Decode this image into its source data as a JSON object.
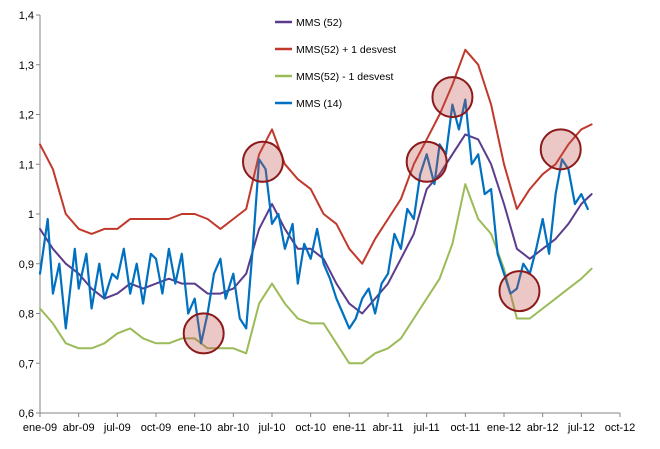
{
  "chart_data": {
    "type": "line",
    "title": "",
    "xlabel": "",
    "ylabel": "",
    "ylim": [
      0.6,
      1.4
    ],
    "xlim": [
      0,
      45
    ],
    "grid": false,
    "legend_position": "top-right",
    "yticks": [
      {
        "v": 0.6,
        "label": "0,6"
      },
      {
        "v": 0.7,
        "label": "0,7"
      },
      {
        "v": 0.8,
        "label": "0,8"
      },
      {
        "v": 0.9,
        "label": "0,9"
      },
      {
        "v": 1.0,
        "label": "1"
      },
      {
        "v": 1.1,
        "label": "1,1"
      },
      {
        "v": 1.2,
        "label": "1,2"
      },
      {
        "v": 1.3,
        "label": "1,3"
      },
      {
        "v": 1.4,
        "label": "1,4"
      }
    ],
    "xticks": [
      {
        "v": 0,
        "label": "ene-09"
      },
      {
        "v": 3,
        "label": "abr-09"
      },
      {
        "v": 6,
        "label": "jul-09"
      },
      {
        "v": 9,
        "label": "oct-09"
      },
      {
        "v": 12,
        "label": "ene-10"
      },
      {
        "v": 15,
        "label": "abr-10"
      },
      {
        "v": 18,
        "label": "jul-10"
      },
      {
        "v": 21,
        "label": "oct-10"
      },
      {
        "v": 24,
        "label": "ene-11"
      },
      {
        "v": 27,
        "label": "abr-11"
      },
      {
        "v": 30,
        "label": "jul-11"
      },
      {
        "v": 33,
        "label": "oct-11"
      },
      {
        "v": 36,
        "label": "ene-12"
      },
      {
        "v": 39,
        "label": "abr-12"
      },
      {
        "v": 42,
        "label": "jul-12"
      },
      {
        "v": 45,
        "label": "oct-12"
      }
    ],
    "series": [
      {
        "name": "MMS (52)",
        "color": "#5b3c8c",
        "points": [
          [
            0,
            0.97
          ],
          [
            1,
            0.93
          ],
          [
            2,
            0.9
          ],
          [
            3,
            0.88
          ],
          [
            4,
            0.85
          ],
          [
            5,
            0.83
          ],
          [
            6,
            0.84
          ],
          [
            7,
            0.86
          ],
          [
            8,
            0.85
          ],
          [
            9,
            0.86
          ],
          [
            10,
            0.87
          ],
          [
            11,
            0.86
          ],
          [
            12,
            0.86
          ],
          [
            13,
            0.84
          ],
          [
            14,
            0.84
          ],
          [
            15,
            0.85
          ],
          [
            16,
            0.88
          ],
          [
            17,
            0.97
          ],
          [
            18,
            1.02
          ],
          [
            19,
            0.97
          ],
          [
            20,
            0.93
          ],
          [
            21,
            0.93
          ],
          [
            22,
            0.91
          ],
          [
            23,
            0.86
          ],
          [
            24,
            0.82
          ],
          [
            25,
            0.8
          ],
          [
            26,
            0.83
          ],
          [
            27,
            0.86
          ],
          [
            28,
            0.91
          ],
          [
            29,
            0.96
          ],
          [
            30,
            1.05
          ],
          [
            31,
            1.08
          ],
          [
            32,
            1.12
          ],
          [
            33,
            1.16
          ],
          [
            34,
            1.15
          ],
          [
            35,
            1.1
          ],
          [
            36,
            1.02
          ],
          [
            37,
            0.93
          ],
          [
            38,
            0.91
          ],
          [
            39,
            0.93
          ],
          [
            40,
            0.95
          ],
          [
            41,
            0.98
          ],
          [
            42,
            1.02
          ],
          [
            42.8,
            1.04
          ]
        ]
      },
      {
        "name": "MMS(52) + 1 desvest",
        "color": "#c0392b",
        "points": [
          [
            0,
            1.14
          ],
          [
            1,
            1.09
          ],
          [
            2,
            1.0
          ],
          [
            3,
            0.97
          ],
          [
            4,
            0.96
          ],
          [
            5,
            0.97
          ],
          [
            6,
            0.97
          ],
          [
            7,
            0.99
          ],
          [
            8,
            0.99
          ],
          [
            9,
            0.99
          ],
          [
            10,
            0.99
          ],
          [
            11,
            1.0
          ],
          [
            12,
            1.0
          ],
          [
            13,
            0.99
          ],
          [
            14,
            0.97
          ],
          [
            15,
            0.99
          ],
          [
            16,
            1.01
          ],
          [
            17,
            1.12
          ],
          [
            18,
            1.17
          ],
          [
            19,
            1.1
          ],
          [
            20,
            1.07
          ],
          [
            21,
            1.05
          ],
          [
            22,
            1.0
          ],
          [
            23,
            0.98
          ],
          [
            24,
            0.93
          ],
          [
            25,
            0.9
          ],
          [
            26,
            0.95
          ],
          [
            27,
            0.99
          ],
          [
            28,
            1.03
          ],
          [
            29,
            1.1
          ],
          [
            30,
            1.15
          ],
          [
            31,
            1.2
          ],
          [
            32,
            1.26
          ],
          [
            33,
            1.33
          ],
          [
            34,
            1.3
          ],
          [
            35,
            1.22
          ],
          [
            36,
            1.1
          ],
          [
            37,
            1.01
          ],
          [
            38,
            1.05
          ],
          [
            39,
            1.08
          ],
          [
            40,
            1.1
          ],
          [
            41,
            1.14
          ],
          [
            42,
            1.17
          ],
          [
            42.8,
            1.18
          ]
        ]
      },
      {
        "name": "MMS(52) - 1 desvest",
        "color": "#9bbb59",
        "points": [
          [
            0,
            0.81
          ],
          [
            1,
            0.78
          ],
          [
            2,
            0.74
          ],
          [
            3,
            0.73
          ],
          [
            4,
            0.73
          ],
          [
            5,
            0.74
          ],
          [
            6,
            0.76
          ],
          [
            7,
            0.77
          ],
          [
            8,
            0.75
          ],
          [
            9,
            0.74
          ],
          [
            10,
            0.74
          ],
          [
            11,
            0.75
          ],
          [
            12,
            0.75
          ],
          [
            13,
            0.73
          ],
          [
            14,
            0.73
          ],
          [
            15,
            0.73
          ],
          [
            16,
            0.72
          ],
          [
            17,
            0.82
          ],
          [
            18,
            0.86
          ],
          [
            19,
            0.82
          ],
          [
            20,
            0.79
          ],
          [
            21,
            0.78
          ],
          [
            22,
            0.78
          ],
          [
            23,
            0.74
          ],
          [
            24,
            0.7
          ],
          [
            25,
            0.7
          ],
          [
            26,
            0.72
          ],
          [
            27,
            0.73
          ],
          [
            28,
            0.75
          ],
          [
            29,
            0.79
          ],
          [
            30,
            0.83
          ],
          [
            31,
            0.87
          ],
          [
            32,
            0.94
          ],
          [
            33,
            1.06
          ],
          [
            34,
            0.99
          ],
          [
            35,
            0.96
          ],
          [
            36,
            0.89
          ],
          [
            37,
            0.79
          ],
          [
            38,
            0.79
          ],
          [
            39,
            0.81
          ],
          [
            40,
            0.83
          ],
          [
            41,
            0.85
          ],
          [
            42,
            0.87
          ],
          [
            42.8,
            0.89
          ]
        ]
      },
      {
        "name": "MMS (14)",
        "color": "#0070c0",
        "points": [
          [
            0,
            0.88
          ],
          [
            0.6,
            0.99
          ],
          [
            1,
            0.84
          ],
          [
            1.5,
            0.9
          ],
          [
            2,
            0.77
          ],
          [
            2.7,
            0.93
          ],
          [
            3,
            0.85
          ],
          [
            3.6,
            0.92
          ],
          [
            4,
            0.81
          ],
          [
            4.6,
            0.9
          ],
          [
            5,
            0.83
          ],
          [
            5.6,
            0.88
          ],
          [
            6,
            0.87
          ],
          [
            6.5,
            0.93
          ],
          [
            7,
            0.84
          ],
          [
            7.5,
            0.9
          ],
          [
            8,
            0.82
          ],
          [
            8.6,
            0.92
          ],
          [
            9,
            0.91
          ],
          [
            9.5,
            0.84
          ],
          [
            10,
            0.93
          ],
          [
            10.5,
            0.86
          ],
          [
            11,
            0.92
          ],
          [
            11.5,
            0.8
          ],
          [
            12,
            0.83
          ],
          [
            12.5,
            0.74
          ],
          [
            13,
            0.8
          ],
          [
            13.5,
            0.88
          ],
          [
            14,
            0.91
          ],
          [
            14.4,
            0.83
          ],
          [
            15,
            0.88
          ],
          [
            15.5,
            0.79
          ],
          [
            16,
            0.77
          ],
          [
            16.5,
            0.93
          ],
          [
            17,
            1.11
          ],
          [
            17.5,
            1.09
          ],
          [
            18,
            0.98
          ],
          [
            18.5,
            1.0
          ],
          [
            19,
            0.93
          ],
          [
            19.6,
            0.98
          ],
          [
            20,
            0.86
          ],
          [
            20.5,
            0.94
          ],
          [
            21,
            0.91
          ],
          [
            21.5,
            0.97
          ],
          [
            22,
            0.9
          ],
          [
            22.5,
            0.87
          ],
          [
            23,
            0.83
          ],
          [
            23.5,
            0.8
          ],
          [
            24,
            0.77
          ],
          [
            24.5,
            0.79
          ],
          [
            25,
            0.83
          ],
          [
            25.5,
            0.85
          ],
          [
            26,
            0.8
          ],
          [
            26.5,
            0.86
          ],
          [
            27,
            0.88
          ],
          [
            27.5,
            0.96
          ],
          [
            28,
            0.93
          ],
          [
            28.5,
            1.01
          ],
          [
            29,
            0.99
          ],
          [
            29.5,
            1.08
          ],
          [
            30,
            1.12
          ],
          [
            30.6,
            1.06
          ],
          [
            31,
            1.14
          ],
          [
            31.5,
            1.12
          ],
          [
            32,
            1.22
          ],
          [
            32.5,
            1.17
          ],
          [
            33,
            1.23
          ],
          [
            33.5,
            1.1
          ],
          [
            34,
            1.12
          ],
          [
            34.5,
            1.04
          ],
          [
            35,
            1.05
          ],
          [
            35.5,
            0.92
          ],
          [
            36,
            0.88
          ],
          [
            36.5,
            0.84
          ],
          [
            37,
            0.85
          ],
          [
            37.5,
            0.9
          ],
          [
            38,
            0.88
          ],
          [
            38.5,
            0.93
          ],
          [
            39,
            0.99
          ],
          [
            39.5,
            0.92
          ],
          [
            40,
            1.04
          ],
          [
            40.5,
            1.11
          ],
          [
            41,
            1.09
          ],
          [
            41.5,
            1.02
          ],
          [
            42,
            1.04
          ],
          [
            42.5,
            1.01
          ]
        ]
      }
    ],
    "highlights": [
      {
        "x": 12.7,
        "y": 0.76
      },
      {
        "x": 17.3,
        "y": 1.105
      },
      {
        "x": 30.0,
        "y": 1.105
      },
      {
        "x": 32.0,
        "y": 1.235
      },
      {
        "x": 37.2,
        "y": 0.845
      },
      {
        "x": 40.4,
        "y": 1.13
      }
    ]
  }
}
